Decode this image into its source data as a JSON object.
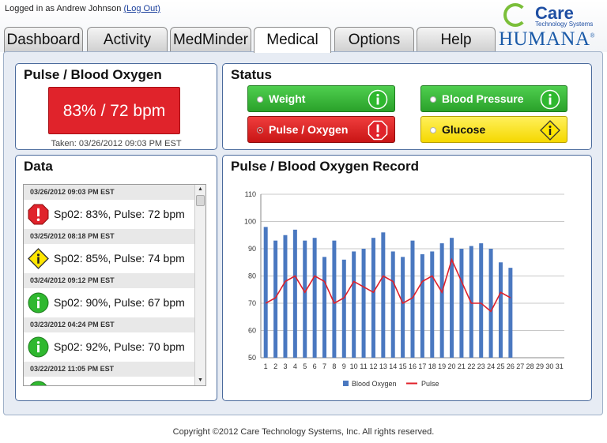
{
  "header": {
    "login_prefix": "Logged in as Andrew Johnson",
    "logout_label": "(Log Out)",
    "care_brand": "Care",
    "care_tagline": "Technology Systems",
    "humana_brand": "HUMANA",
    "humana_mark": "®"
  },
  "tabs": [
    {
      "label": "Dashboard"
    },
    {
      "label": "Activity"
    },
    {
      "label": "MedMinder"
    },
    {
      "label": "Medical",
      "active": true
    },
    {
      "label": "Options"
    },
    {
      "label": "Help"
    }
  ],
  "pulse_panel": {
    "title": "Pulse / Blood Oxygen",
    "reading": "83% / 72 bpm",
    "taken": "Taken: 03/26/2012 09:03 PM EST",
    "color": "#e0232b"
  },
  "status_panel": {
    "title": "Status",
    "items": [
      {
        "label": "Weight",
        "state": "ok",
        "icon": "info-icon",
        "color": "#2aa12a"
      },
      {
        "label": "Blood Pressure",
        "state": "ok",
        "icon": "info-icon",
        "color": "#2aa12a"
      },
      {
        "label": "Pulse / Oxygen",
        "state": "alert",
        "icon": "stop-alert-icon",
        "color": "#c91515"
      },
      {
        "label": "Glucose",
        "state": "warning",
        "icon": "warning-diamond-icon",
        "color": "#f5d800"
      }
    ]
  },
  "data_panel": {
    "title": "Data",
    "entries": [
      {
        "date": "03/26/2012 09:03 PM EST",
        "text": "Sp02: 83%, Pulse: 72 bpm",
        "state": "alert"
      },
      {
        "date": "03/25/2012 08:18 PM EST",
        "text": "Sp02: 85%, Pulse: 74 bpm",
        "state": "warning"
      },
      {
        "date": "03/24/2012 09:12 PM EST",
        "text": "Sp02: 90%, Pulse: 67 bpm",
        "state": "ok"
      },
      {
        "date": "03/23/2012 04:24 PM EST",
        "text": "Sp02: 92%, Pulse: 70 bpm",
        "state": "ok"
      },
      {
        "date": "03/22/2012 11:05 PM EST",
        "text": "",
        "state": "ok"
      }
    ]
  },
  "record_panel": {
    "title": "Pulse / Blood Oxygen Record"
  },
  "chart_data": {
    "type": "bar",
    "categories": [
      "1",
      "2",
      "3",
      "4",
      "5",
      "6",
      "7",
      "8",
      "9",
      "10",
      "11",
      "12",
      "13",
      "14",
      "15",
      "16",
      "17",
      "18",
      "19",
      "20",
      "21",
      "22",
      "23",
      "24",
      "25",
      "26",
      "27",
      "28",
      "29",
      "30",
      "31"
    ],
    "series": [
      {
        "name": "Blood Oxygen",
        "type": "bar",
        "color": "#4a78c0",
        "values": [
          98,
          93,
          95,
          97,
          93,
          94,
          87,
          93,
          86,
          89,
          90,
          94,
          96,
          89,
          87,
          93,
          88,
          89,
          92,
          94,
          90,
          91,
          92,
          90,
          85,
          83,
          null,
          null,
          null,
          null,
          null
        ]
      },
      {
        "name": "Pulse",
        "type": "line",
        "color": "#e0202a",
        "values": [
          70,
          72,
          78,
          80,
          74,
          80,
          78,
          70,
          72,
          78,
          76,
          74,
          80,
          78,
          70,
          72,
          78,
          80,
          74,
          86,
          78,
          70,
          70,
          67,
          74,
          72,
          null,
          null,
          null,
          null,
          null
        ]
      }
    ],
    "yticks": [
      50,
      60,
      70,
      80,
      90,
      100,
      110
    ],
    "ylim": [
      50,
      110
    ],
    "grid": true,
    "legend": "bottom"
  },
  "footer": {
    "copyright": "Copyright ©2012 Care Technology Systems, Inc. All rights reserved."
  }
}
